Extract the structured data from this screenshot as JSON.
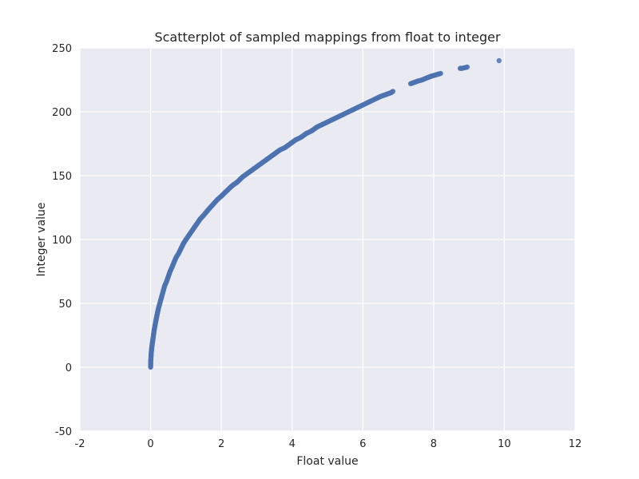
{
  "chart_data": {
    "type": "scatter",
    "title": "Scatterplot of sampled mappings from float to integer",
    "xlabel": "Float value",
    "ylabel": "Integer value",
    "xlim": [
      -2,
      12
    ],
    "ylim": [
      -50,
      250
    ],
    "xticks": [
      "-2",
      "0",
      "2",
      "4",
      "6",
      "8",
      "10",
      "12"
    ],
    "yticks": [
      "-50",
      "0",
      "50",
      "100",
      "150",
      "200",
      "250"
    ],
    "grid": true,
    "colors": {
      "background": "#eaeaf2",
      "grid": "#ffffff",
      "point": "#4c72b0"
    },
    "series": [
      {
        "values": [
          [
            0.0,
            0
          ],
          [
            0.001,
            2
          ],
          [
            0.003,
            4
          ],
          [
            0.006,
            6
          ],
          [
            0.01,
            8
          ],
          [
            0.015,
            10
          ],
          [
            0.02,
            12
          ],
          [
            0.028,
            14
          ],
          [
            0.035,
            16
          ],
          [
            0.045,
            18
          ],
          [
            0.055,
            20
          ],
          [
            0.07,
            23
          ],
          [
            0.085,
            26
          ],
          [
            0.1,
            29
          ],
          [
            0.12,
            32
          ],
          [
            0.14,
            35
          ],
          [
            0.16,
            38
          ],
          [
            0.19,
            42
          ],
          [
            0.22,
            46
          ],
          [
            0.25,
            49
          ],
          [
            0.28,
            52
          ],
          [
            0.32,
            56
          ],
          [
            0.36,
            60
          ],
          [
            0.4,
            64
          ],
          [
            0.45,
            67
          ],
          [
            0.5,
            71
          ],
          [
            0.55,
            75
          ],
          [
            0.6,
            78
          ],
          [
            0.66,
            82
          ],
          [
            0.72,
            86
          ],
          [
            0.79,
            89
          ],
          [
            0.86,
            93
          ],
          [
            0.93,
            97
          ],
          [
            1.0,
            100
          ],
          [
            1.1,
            104
          ],
          [
            1.2,
            108
          ],
          [
            1.3,
            112
          ],
          [
            1.4,
            116
          ],
          [
            1.5,
            119
          ],
          [
            1.62,
            123
          ],
          [
            1.75,
            127
          ],
          [
            1.88,
            131
          ],
          [
            2.0,
            134
          ],
          [
            2.15,
            138
          ],
          [
            2.3,
            142
          ],
          [
            2.45,
            145
          ],
          [
            2.6,
            149
          ],
          [
            2.75,
            152
          ],
          [
            2.9,
            155
          ],
          [
            3.05,
            158
          ],
          [
            3.2,
            161
          ],
          [
            3.35,
            164
          ],
          [
            3.5,
            167
          ],
          [
            3.65,
            170
          ],
          [
            3.8,
            172
          ],
          [
            3.95,
            175
          ],
          [
            4.1,
            178
          ],
          [
            4.25,
            180
          ],
          [
            4.4,
            183
          ],
          [
            4.55,
            185
          ],
          [
            4.7,
            188
          ],
          [
            4.85,
            190
          ],
          [
            5.0,
            192
          ],
          [
            5.15,
            194
          ],
          [
            5.3,
            196
          ],
          [
            5.45,
            198
          ],
          [
            5.6,
            200
          ],
          [
            5.75,
            202
          ],
          [
            5.9,
            204
          ],
          [
            6.05,
            206
          ],
          [
            6.2,
            208
          ],
          [
            6.35,
            210
          ],
          [
            6.5,
            212
          ],
          [
            6.6,
            213
          ],
          [
            6.7,
            214
          ],
          [
            6.8,
            215
          ],
          [
            6.85,
            216
          ],
          [
            7.35,
            222
          ],
          [
            7.45,
            223
          ],
          [
            7.55,
            224
          ],
          [
            7.68,
            225
          ],
          [
            7.85,
            227
          ],
          [
            7.95,
            228
          ],
          [
            8.2,
            230
          ],
          [
            8.75,
            234
          ],
          [
            8.8,
            234
          ],
          [
            8.95,
            235
          ],
          [
            9.85,
            240
          ]
        ]
      }
    ]
  }
}
